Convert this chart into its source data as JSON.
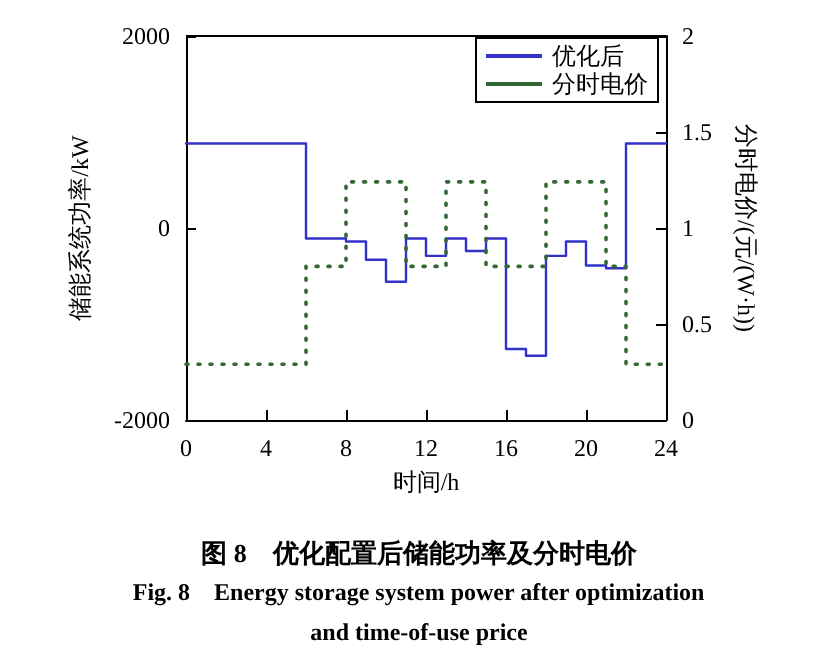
{
  "chart_data": {
    "type": "step",
    "xlabel": "时间/h",
    "ylabel": "储能系统功率/kW",
    "y2label": "分时电价/(元/(W·h))",
    "x": [
      0,
      1,
      2,
      3,
      4,
      5,
      6,
      7,
      8,
      9,
      10,
      11,
      12,
      13,
      14,
      15,
      16,
      17,
      18,
      19,
      20,
      21,
      22,
      23,
      24
    ],
    "series": [
      {
        "name": "优化后",
        "color": "#3333cc",
        "line_style": "solid",
        "values": [
          880,
          880,
          880,
          880,
          880,
          880,
          -110,
          -110,
          -140,
          -330,
          -560,
          -110,
          -290,
          -110,
          -240,
          -110,
          -1260,
          -1330,
          -290,
          -140,
          -390,
          -420,
          880,
          880,
          880
        ]
      },
      {
        "name": "分时电价",
        "color": "#336633",
        "line_style": "dotted",
        "axis": "y2",
        "values": [
          0.29,
          0.29,
          0.29,
          0.29,
          0.29,
          0.29,
          0.8,
          0.8,
          1.24,
          1.24,
          1.24,
          0.8,
          0.8,
          1.24,
          1.24,
          0.8,
          0.8,
          0.8,
          1.24,
          1.24,
          1.24,
          0.8,
          0.29,
          0.29,
          0.29
        ]
      }
    ],
    "xlim": [
      0,
      24
    ],
    "xticks": [
      0,
      4,
      8,
      12,
      16,
      20,
      24
    ],
    "ylim": [
      -2000,
      2000
    ],
    "yticks": [
      -2000,
      0,
      2000
    ],
    "y2lim": [
      0,
      2
    ],
    "y2ticks": [
      0,
      0.5,
      1,
      1.5,
      2
    ],
    "grid": false,
    "legend": "top right",
    "annotations": [
      "图 8　优化配置后储能功率及分时电价",
      "Fig. 8　Energy storage system power after optimization",
      "and time-of-use price"
    ]
  }
}
